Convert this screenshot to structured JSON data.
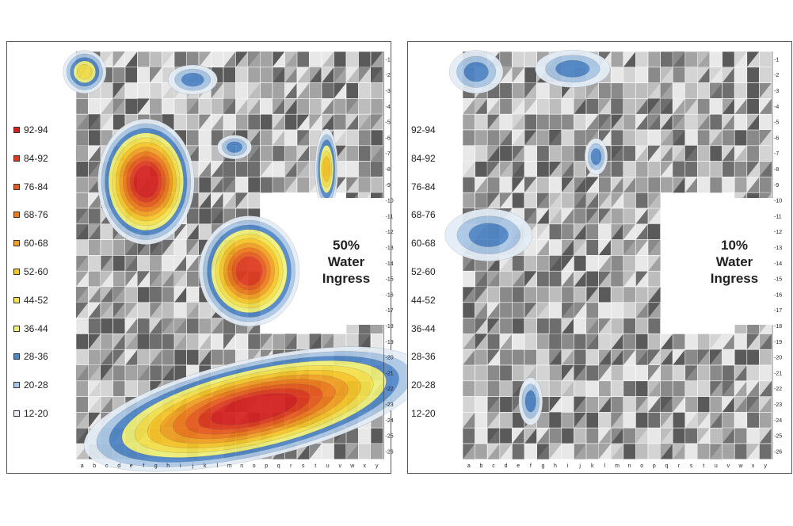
{
  "chart_data": [
    {
      "type": "heatmap",
      "title": "50% Water Ingress",
      "title_lines": [
        "50%",
        "Water",
        "Ingress"
      ],
      "x_categories": [
        "a",
        "b",
        "c",
        "d",
        "e",
        "f",
        "g",
        "h",
        "i",
        "j",
        "k",
        "l",
        "m",
        "n",
        "o",
        "p",
        "q",
        "r",
        "s",
        "t",
        "u",
        "v",
        "w",
        "x",
        "y"
      ],
      "y_categories": [
        "1",
        "2",
        "3",
        "4",
        "5",
        "6",
        "7",
        "8",
        "9",
        "10",
        "11",
        "12",
        "13",
        "14",
        "15",
        "16",
        "17",
        "18",
        "19",
        "20",
        "21",
        "22",
        "23",
        "24",
        "25",
        "26"
      ],
      "legend": [
        {
          "label": "92-94",
          "color": "#d62020"
        },
        {
          "label": "84-92",
          "color": "#e03a1e"
        },
        {
          "label": "76-84",
          "color": "#e85a1c"
        },
        {
          "label": "68-76",
          "color": "#ee7a1a"
        },
        {
          "label": "60-68",
          "color": "#f3a020"
        },
        {
          "label": "52-60",
          "color": "#f7c525"
        },
        {
          "label": "44-52",
          "color": "#f5e14a"
        },
        {
          "label": "36-44",
          "color": "#eef07a"
        },
        {
          "label": "28-36",
          "color": "#4f86c6"
        },
        {
          "label": "20-28",
          "color": "#a9c7e6"
        },
        {
          "label": "12-20",
          "color": "#e4edf6"
        }
      ],
      "hotspots": [
        {
          "col": 5.2,
          "row": 7.8,
          "peak": 93,
          "spread": 2.3,
          "stretch": 1.3
        },
        {
          "col": 13.6,
          "row": 13.5,
          "peak": 85,
          "spread": 2.2,
          "stretch": 1.1
        },
        {
          "col": 19.9,
          "row": 7.0,
          "peak": 58,
          "spread": 0.9,
          "stretch": 3.5
        },
        {
          "col": 14.0,
          "row": 22.3,
          "peak": 94,
          "spread": 2.6,
          "stretch": 1.0,
          "elongated": true
        },
        {
          "col": 9.0,
          "row": 1.3,
          "peak": 32,
          "spread": 0.8,
          "stretch": 0.6
        },
        {
          "col": 12.4,
          "row": 5.6,
          "peak": 30,
          "spread": 0.6,
          "stretch": 0.7
        },
        {
          "col": 0.2,
          "row": 0.8,
          "peak": 46,
          "spread": 0.9,
          "stretch": 1.0
        }
      ],
      "blank_region": {
        "from_col": "p",
        "to_col": "v",
        "from_row": "10",
        "to_row": "18"
      }
    },
    {
      "type": "heatmap",
      "title": "10% Water Ingress",
      "title_lines": [
        "10%",
        "Water",
        "Ingress"
      ],
      "x_categories": [
        "a",
        "b",
        "c",
        "d",
        "e",
        "f",
        "g",
        "h",
        "i",
        "j",
        "k",
        "l",
        "m",
        "n",
        "o",
        "p",
        "q",
        "r",
        "s",
        "t",
        "u",
        "v",
        "w",
        "x",
        "y"
      ],
      "y_categories": [
        "1",
        "2",
        "3",
        "4",
        "5",
        "6",
        "7",
        "8",
        "9",
        "10",
        "11",
        "12",
        "13",
        "14",
        "15",
        "16",
        "17",
        "18",
        "19",
        "20",
        "21",
        "22",
        "23",
        "24",
        "25",
        "26"
      ],
      "legend": [
        {
          "label": "92-94"
        },
        {
          "label": "84-92"
        },
        {
          "label": "76-84"
        },
        {
          "label": "68-76"
        },
        {
          "label": "60-68"
        },
        {
          "label": "52-60"
        },
        {
          "label": "44-52"
        },
        {
          "label": "36-44"
        },
        {
          "label": "28-36"
        },
        {
          "label": "20-28"
        },
        {
          "label": "12-20"
        }
      ],
      "hotspots": [
        {
          "col": 0.6,
          "row": 0.8,
          "peak": 34,
          "spread": 1.0,
          "stretch": 0.8
        },
        {
          "col": 8.4,
          "row": 0.6,
          "peak": 33,
          "spread": 1.1,
          "stretch": 0.5
        },
        {
          "col": 10.3,
          "row": 6.2,
          "peak": 34,
          "spread": 0.6,
          "stretch": 1.6
        },
        {
          "col": 1.6,
          "row": 11.2,
          "peak": 33,
          "spread": 1.4,
          "stretch": 0.6
        },
        {
          "col": 5.0,
          "row": 21.8,
          "peak": 34,
          "spread": 0.7,
          "stretch": 2.0
        }
      ],
      "blank_region": {
        "from_col": "q",
        "to_col": "v",
        "from_row": "10",
        "to_row": "18"
      }
    }
  ]
}
